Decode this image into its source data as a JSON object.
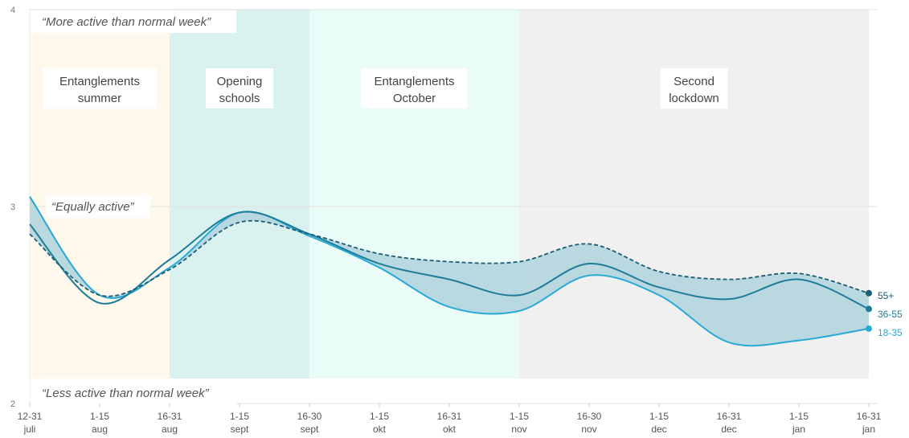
{
  "colors": {
    "series_18_35": "#2aa8d6",
    "series_36_55": "#1f7d99",
    "series_55_plus": "#1b5d73",
    "band_fill": "#b3d5de",
    "grid": "#e2e2e2",
    "periods": [
      "#fff8ec",
      "#daf2ef",
      "#eafcf7",
      "#f0f0f0"
    ]
  },
  "chart_data": {
    "type": "line",
    "ylim": [
      2,
      4
    ],
    "yticks": [
      2,
      3,
      4
    ],
    "categories": [
      [
        "12-31",
        "juli"
      ],
      [
        "1-15",
        "aug"
      ],
      [
        "16-31",
        "aug"
      ],
      [
        "1-15",
        "sept"
      ],
      [
        "16-30",
        "sept"
      ],
      [
        "1-15",
        "okt"
      ],
      [
        "16-31",
        "okt"
      ],
      [
        "1-15",
        "nov"
      ],
      [
        "16-30",
        "nov"
      ],
      [
        "1-15",
        "dec"
      ],
      [
        "16-31",
        "dec"
      ],
      [
        "1-15",
        "jan"
      ],
      [
        "16-31",
        "jan"
      ]
    ],
    "series": [
      {
        "name": "18-35",
        "style": "solid",
        "values": [
          3.05,
          2.55,
          2.69,
          2.97,
          2.85,
          2.69,
          2.49,
          2.47,
          2.65,
          2.55,
          2.31,
          2.32,
          2.38
        ]
      },
      {
        "name": "36-55",
        "style": "solid",
        "values": [
          2.91,
          2.51,
          2.73,
          2.97,
          2.86,
          2.71,
          2.63,
          2.55,
          2.71,
          2.59,
          2.53,
          2.63,
          2.48
        ]
      },
      {
        "name": "55+",
        "style": "dashed",
        "values": [
          2.86,
          2.55,
          2.68,
          2.92,
          2.86,
          2.76,
          2.72,
          2.72,
          2.81,
          2.67,
          2.63,
          2.66,
          2.56
        ]
      }
    ],
    "periods": [
      {
        "label": [
          "Entanglements",
          "summer"
        ],
        "from": 0,
        "to": 2
      },
      {
        "label": [
          "Opening",
          "schools"
        ],
        "from": 2,
        "to": 4
      },
      {
        "label": [
          "Entanglements",
          "October"
        ],
        "from": 4,
        "to": 7
      },
      {
        "label": [
          "Second",
          "lockdown"
        ],
        "from": 7,
        "to": 12
      }
    ],
    "reference_labels": {
      "top": "“More active than normal week”",
      "middle": "“Equally active”",
      "bottom": "“Less active than normal week”"
    },
    "grid": true
  }
}
